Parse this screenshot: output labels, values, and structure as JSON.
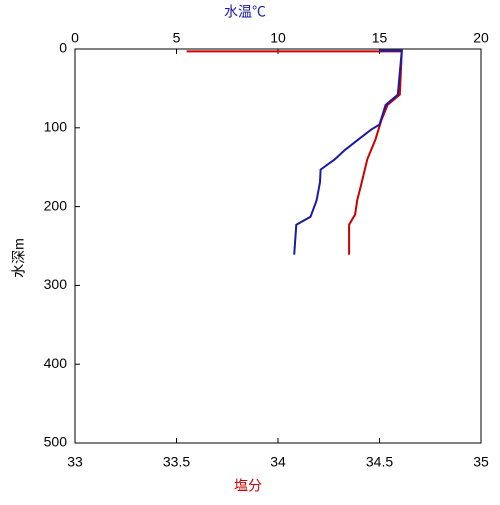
{
  "chart_data": {
    "type": "profile",
    "x_label": "塩分",
    "x2_label": "水温℃",
    "y_label": "水深m",
    "xlim": [
      33,
      35
    ],
    "xticks": [
      33,
      33.5,
      34,
      34.5,
      35
    ],
    "x2lim": [
      0,
      20
    ],
    "x2ticks": [
      0,
      5,
      10,
      15,
      20
    ],
    "ylim": [
      500,
      0
    ],
    "yticks": [
      0,
      100,
      200,
      300,
      400,
      500
    ],
    "x_label_color": "#cc0000",
    "x2_label_color": "#1a1aa6",
    "series": [
      {
        "color": "#cc0000",
        "axis": "x",
        "depth": [
          3,
          3,
          58,
          71,
          90,
          115,
          140,
          172,
          192,
          210,
          223,
          261
        ],
        "values": [
          33.55,
          34.61,
          34.6,
          34.54,
          34.51,
          34.48,
          34.44,
          34.41,
          34.39,
          34.38,
          34.35,
          34.35
        ]
      },
      {
        "color": "#1a1aa6",
        "axis": "x2",
        "depth": [
          2,
          2,
          58,
          71,
          96,
          102,
          114,
          128,
          140,
          153,
          169,
          192,
          213,
          223,
          261
        ],
        "values": [
          15,
          16.1,
          15.9,
          15.3,
          15,
          14.6,
          14,
          13.3,
          12.8,
          12.1,
          12.07,
          11.9,
          11.6,
          10.9,
          10.8
        ]
      }
    ]
  }
}
